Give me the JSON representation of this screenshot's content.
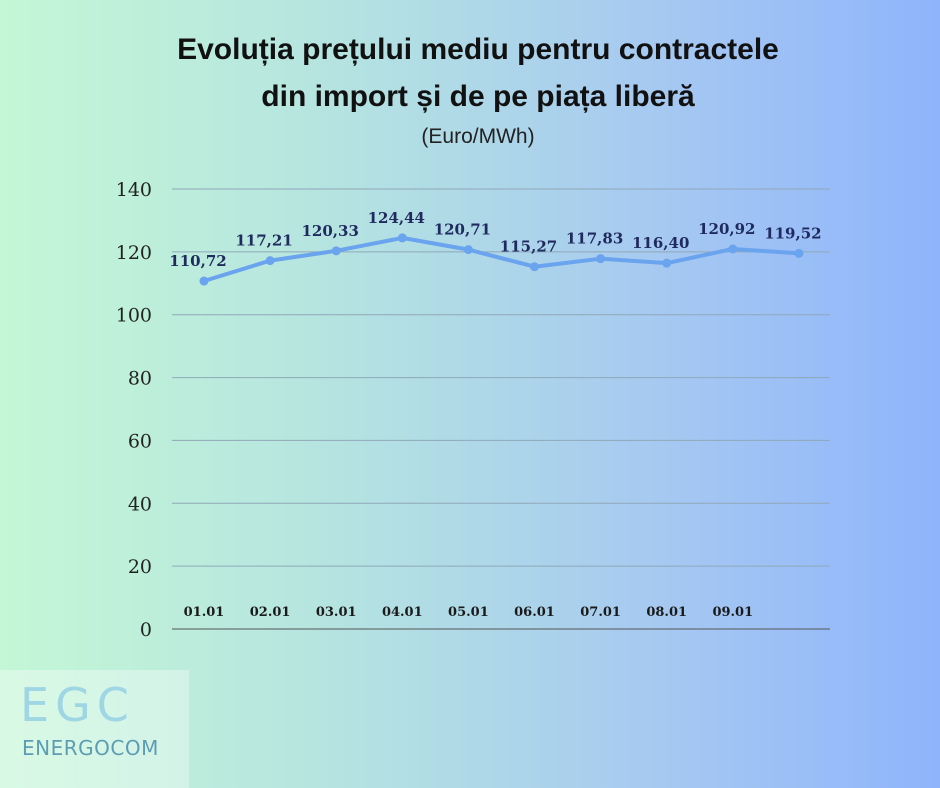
{
  "header": {
    "title_line1": "Evoluția prețului mediu pentru contractele",
    "title_line2": "din import și de pe piața liberă",
    "unit": "(Euro/MWh)"
  },
  "logo": {
    "mark": "EGC",
    "name": "ENERGOCOM"
  },
  "colors": {
    "line": "#6aa3ee",
    "data_label": "#1f2a5e",
    "grid": "#8fa8b8",
    "axis": "#555555"
  },
  "chart_data": {
    "type": "line",
    "title": "Evoluția prețului mediu pentru contractele din import și de pe piața liberă",
    "subtitle": "(Euro/MWh)",
    "categories": [
      "01.01",
      "02.01",
      "03.01",
      "04.01",
      "05.01",
      "06.01",
      "07.01",
      "08.01",
      "09.01",
      ""
    ],
    "series": [
      {
        "values": [
          110.72,
          117.21,
          120.33,
          124.44,
          120.71,
          115.27,
          117.83,
          116.4,
          120.92,
          119.52
        ],
        "labels": [
          "110,72",
          "117,21",
          "120,33",
          "124,44",
          "120,71",
          "115,27",
          "117,83",
          "116,40",
          "120,92",
          "119,52"
        ]
      }
    ],
    "y_ticks": [
      "0",
      "20",
      "40",
      "60",
      "80",
      "100",
      "120",
      "140"
    ],
    "ylim": [
      0,
      140
    ],
    "grid": true,
    "legend": "none"
  }
}
